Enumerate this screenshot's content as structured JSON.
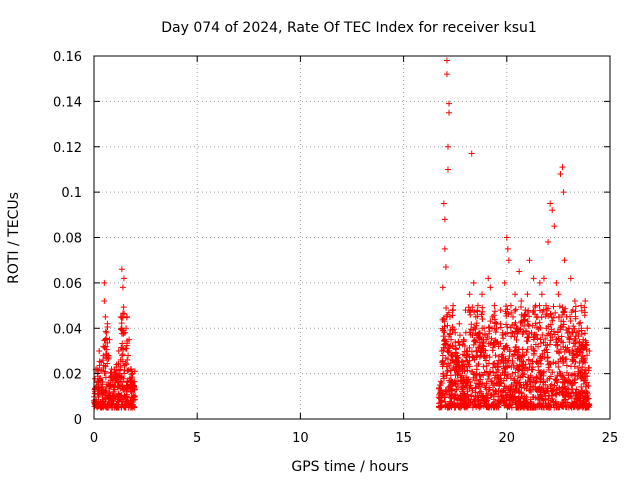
{
  "chart_data": {
    "type": "scatter",
    "title": "Day 074 of 2024, Rate Of TEC Index for receiver ksu1",
    "xlabel": "GPS time / hours",
    "ylabel": "ROTI / TECUs",
    "xlim": [
      0,
      25
    ],
    "ylim": [
      0,
      0.16
    ],
    "xticks": [
      0,
      5,
      10,
      15,
      20,
      25
    ],
    "xtick_labels": [
      "0",
      "5",
      "10",
      "15",
      "20",
      "25"
    ],
    "yticks": [
      0,
      0.02,
      0.04,
      0.06,
      0.08,
      0.1,
      0.12,
      0.14,
      0.16
    ],
    "ytick_labels": [
      "0",
      "0.02",
      "0.04",
      "0.06",
      "0.08",
      "0.1",
      "0.12",
      "0.14",
      "0.16"
    ],
    "grid": true,
    "marker": "+",
    "series": [
      {
        "name": "ROTI",
        "color": "#ff0000",
        "points": [
          [
            0.05,
            0.012
          ],
          [
            0.1,
            0.008
          ],
          [
            0.15,
            0.022
          ],
          [
            0.2,
            0.015
          ],
          [
            0.25,
            0.03
          ],
          [
            0.3,
            0.018
          ],
          [
            0.35,
            0.025
          ],
          [
            0.4,
            0.012
          ],
          [
            0.45,
            0.032
          ],
          [
            0.5,
            0.06
          ],
          [
            0.5,
            0.052
          ],
          [
            0.55,
            0.045
          ],
          [
            0.6,
            0.038
          ],
          [
            0.65,
            0.042
          ],
          [
            0.7,
            0.028
          ],
          [
            0.75,
            0.035
          ],
          [
            0.8,
            0.015
          ],
          [
            0.85,
            0.022
          ],
          [
            0.9,
            0.018
          ],
          [
            0.95,
            0.012
          ],
          [
            1.0,
            0.01
          ],
          [
            1.05,
            0.016
          ],
          [
            1.1,
            0.024
          ],
          [
            1.15,
            0.014
          ],
          [
            1.2,
            0.03
          ],
          [
            1.25,
            0.02
          ],
          [
            1.3,
            0.045
          ],
          [
            1.35,
            0.066
          ],
          [
            1.4,
            0.058
          ],
          [
            1.45,
            0.062
          ],
          [
            1.5,
            0.038
          ],
          [
            1.55,
            0.04
          ],
          [
            1.6,
            0.045
          ],
          [
            1.65,
            0.028
          ],
          [
            1.7,
            0.035
          ],
          [
            1.75,
            0.018
          ],
          [
            1.8,
            0.022
          ],
          [
            1.85,
            0.012
          ],
          [
            1.9,
            0.015
          ],
          [
            16.8,
            0.015
          ],
          [
            16.85,
            0.03
          ],
          [
            16.9,
            0.058
          ],
          [
            16.95,
            0.095
          ],
          [
            17.0,
            0.088
          ],
          [
            17.0,
            0.075
          ],
          [
            17.05,
            0.067
          ],
          [
            17.1,
            0.158
          ],
          [
            17.1,
            0.152
          ],
          [
            17.15,
            0.11
          ],
          [
            17.15,
            0.12
          ],
          [
            17.2,
            0.135
          ],
          [
            17.2,
            0.139
          ],
          [
            17.25,
            0.045
          ],
          [
            17.3,
            0.035
          ],
          [
            17.4,
            0.05
          ],
          [
            17.5,
            0.038
          ],
          [
            17.6,
            0.028
          ],
          [
            17.7,
            0.042
          ],
          [
            17.8,
            0.025
          ],
          [
            17.9,
            0.035
          ],
          [
            18.0,
            0.048
          ],
          [
            18.1,
            0.03
          ],
          [
            18.2,
            0.055
          ],
          [
            18.3,
            0.117
          ],
          [
            18.4,
            0.06
          ],
          [
            18.5,
            0.045
          ],
          [
            18.6,
            0.05
          ],
          [
            18.7,
            0.038
          ],
          [
            18.8,
            0.055
          ],
          [
            18.9,
            0.04
          ],
          [
            19.0,
            0.035
          ],
          [
            19.1,
            0.062
          ],
          [
            19.2,
            0.058
          ],
          [
            19.3,
            0.045
          ],
          [
            19.4,
            0.05
          ],
          [
            19.5,
            0.042
          ],
          [
            19.6,
            0.032
          ],
          [
            19.7,
            0.048
          ],
          [
            19.8,
            0.038
          ],
          [
            19.9,
            0.06
          ],
          [
            20.0,
            0.08
          ],
          [
            20.05,
            0.075
          ],
          [
            20.1,
            0.07
          ],
          [
            20.2,
            0.05
          ],
          [
            20.3,
            0.045
          ],
          [
            20.4,
            0.055
          ],
          [
            20.5,
            0.04
          ],
          [
            20.6,
            0.065
          ],
          [
            20.7,
            0.052
          ],
          [
            20.8,
            0.045
          ],
          [
            20.9,
            0.048
          ],
          [
            21.0,
            0.055
          ],
          [
            21.1,
            0.07
          ],
          [
            21.2,
            0.038
          ],
          [
            21.3,
            0.062
          ],
          [
            21.4,
            0.05
          ],
          [
            21.5,
            0.045
          ],
          [
            21.6,
            0.06
          ],
          [
            21.7,
            0.055
          ],
          [
            21.8,
            0.062
          ],
          [
            21.9,
            0.05
          ],
          [
            22.0,
            0.078
          ],
          [
            22.1,
            0.095
          ],
          [
            22.2,
            0.092
          ],
          [
            22.3,
            0.085
          ],
          [
            22.4,
            0.06
          ],
          [
            22.5,
            0.055
          ],
          [
            22.6,
            0.108
          ],
          [
            22.7,
            0.111
          ],
          [
            22.75,
            0.1
          ],
          [
            22.8,
            0.07
          ],
          [
            22.9,
            0.045
          ],
          [
            23.0,
            0.04
          ],
          [
            23.1,
            0.062
          ],
          [
            23.2,
            0.048
          ],
          [
            23.3,
            0.052
          ],
          [
            23.4,
            0.038
          ],
          [
            23.5,
            0.042
          ],
          [
            23.6,
            0.05
          ],
          [
            23.7,
            0.035
          ],
          [
            23.8,
            0.052
          ],
          [
            23.9,
            0.04
          ],
          [
            24.0,
            0.03
          ]
        ]
      }
    ]
  },
  "colors": {
    "series": "#ff0000",
    "grid": "#a0a0a0",
    "axis": "#000000",
    "background": "#ffffff"
  }
}
